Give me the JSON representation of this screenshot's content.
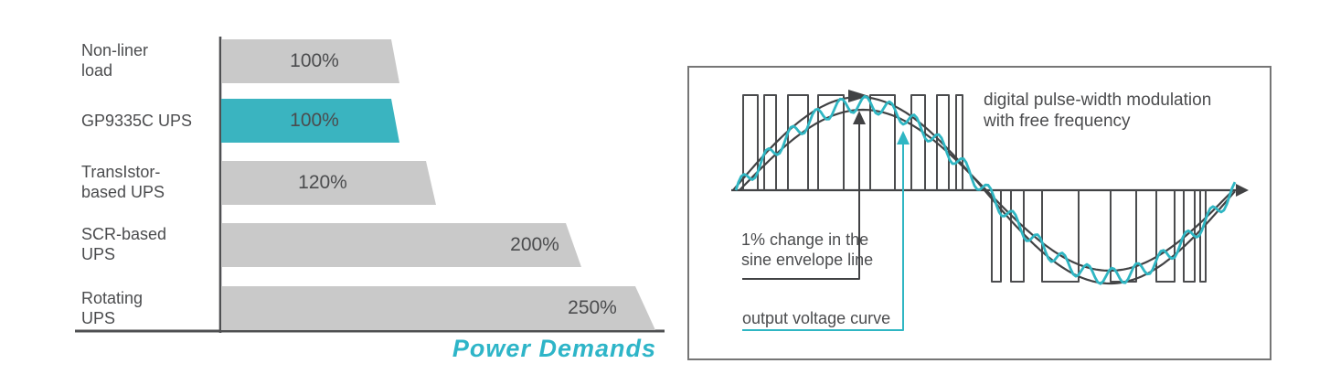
{
  "chart_data": {
    "type": "bar",
    "orientation": "horizontal",
    "title": "Power Demands",
    "categories": [
      "Non-liner load",
      "GP9335C UPS",
      "TransIstor-based UPS",
      "SCR-based UPS",
      "Rotating UPS"
    ],
    "category_lines": [
      [
        "Non-liner",
        "load"
      ],
      [
        "GP9335C UPS",
        ""
      ],
      [
        "TransIstor-",
        "based UPS"
      ],
      [
        "SCR-based",
        "UPS"
      ],
      [
        "Rotating",
        "UPS"
      ]
    ],
    "values": [
      100,
      100,
      120,
      200,
      250
    ],
    "value_labels": [
      "100%",
      "100%",
      "120%",
      "200%",
      "250%"
    ],
    "unit": "%",
    "highlighted_category": "GP9335C UPS",
    "highlight_index": 1,
    "xlim": [
      0,
      260
    ],
    "xlabel": "",
    "ylabel": "",
    "grid": false,
    "legend": false,
    "bar_shape": "parallelogram-slanted-right-edge"
  },
  "pwm_diagram": {
    "modulation_label_lines": [
      "digital pulse-width modulation",
      "with free frequency"
    ],
    "envelope_label_lines": [
      "1% change in the",
      "sine envelope line"
    ],
    "output_label": "output voltage curve",
    "axis_y": 208,
    "axis_x_range": [
      800,
      1352
    ],
    "pulse_top_y": 104,
    "pulse_bottom_y": 308,
    "positive_pulses": [
      [
        813,
        829
      ],
      [
        836,
        849
      ],
      [
        862,
        884
      ],
      [
        895,
        923
      ],
      [
        952,
        979
      ],
      [
        997,
        1012
      ],
      [
        1025,
        1038
      ],
      [
        1046,
        1053
      ]
    ],
    "negative_pulses": [
      [
        1085,
        1095
      ],
      [
        1106,
        1120
      ],
      [
        1140,
        1180
      ],
      [
        1215,
        1243
      ],
      [
        1265,
        1285
      ],
      [
        1295,
        1307
      ],
      [
        1313,
        1319
      ]
    ],
    "sine": {
      "period": 550,
      "amp_outer": 102,
      "amp_inner": 88,
      "output_amp": 94,
      "ripple_amp": 9,
      "ripple_wavelength": 27
    }
  },
  "colors": {
    "bar_gray": "#c9c9c9",
    "bar_teal": "#3ab4c0",
    "title_teal": "#2eb5c8",
    "curve_teal": "#2fb6c3",
    "text_dark": "#4b4c4e",
    "line_dark": "#414244",
    "box_border": "#767676"
  }
}
